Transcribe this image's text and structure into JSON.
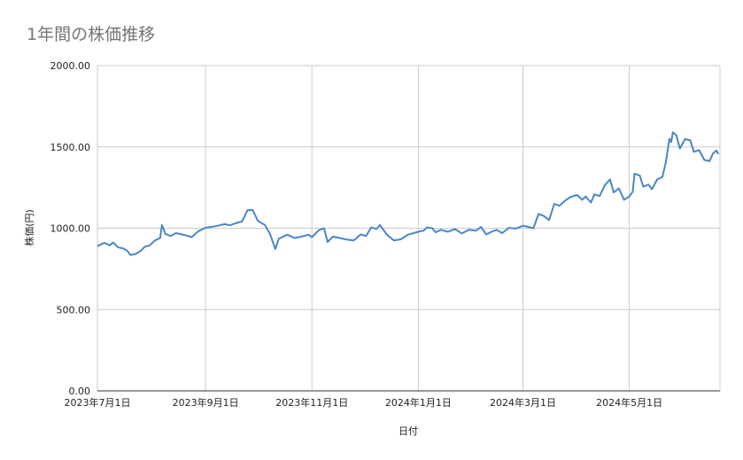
{
  "title": "1年間の株価推移",
  "chart_data": {
    "type": "line",
    "title": "1年間の株価推移",
    "xlabel": "日付",
    "ylabel": "株価(円)",
    "ylim": [
      0,
      2000
    ],
    "yticks": [
      "0.00",
      "500.00",
      "1000.00",
      "1500.00",
      "2000.00"
    ],
    "xticks": [
      {
        "date": "2023-07-01",
        "label": "2023年7月1日"
      },
      {
        "date": "2023-09-01",
        "label": "2023年9月1日"
      },
      {
        "date": "2023-11-01",
        "label": "2023年11月1日"
      },
      {
        "date": "2024-01-01",
        "label": "2024年1月1日"
      },
      {
        "date": "2024-03-01",
        "label": "2024年3月1日"
      },
      {
        "date": "2024-05-01",
        "label": "2024年5月1日"
      }
    ],
    "grid": true,
    "line_color": "#4a86c8",
    "series": [
      {
        "points": [
          [
            "2023-07-01",
            890
          ],
          [
            "2023-07-05",
            910
          ],
          [
            "2023-07-08",
            895
          ],
          [
            "2023-07-10",
            912
          ],
          [
            "2023-07-13",
            882
          ],
          [
            "2023-07-16",
            875
          ],
          [
            "2023-07-18",
            862
          ],
          [
            "2023-07-20",
            835
          ],
          [
            "2023-07-23",
            842
          ],
          [
            "2023-07-26",
            862
          ],
          [
            "2023-07-28",
            885
          ],
          [
            "2023-07-31",
            895
          ],
          [
            "2023-08-03",
            925
          ],
          [
            "2023-08-06",
            940
          ],
          [
            "2023-08-07",
            1020
          ],
          [
            "2023-08-09",
            965
          ],
          [
            "2023-08-12",
            952
          ],
          [
            "2023-08-15",
            970
          ],
          [
            "2023-08-20",
            958
          ],
          [
            "2023-08-24",
            945
          ],
          [
            "2023-08-28",
            982
          ],
          [
            "2023-09-01",
            1003
          ],
          [
            "2023-09-05",
            1010
          ],
          [
            "2023-09-08",
            1015
          ],
          [
            "2023-09-12",
            1025
          ],
          [
            "2023-09-15",
            1018
          ],
          [
            "2023-09-18",
            1030
          ],
          [
            "2023-09-22",
            1042
          ],
          [
            "2023-09-25",
            1110
          ],
          [
            "2023-09-28",
            1112
          ],
          [
            "2023-10-01",
            1045
          ],
          [
            "2023-10-05",
            1020
          ],
          [
            "2023-10-08",
            965
          ],
          [
            "2023-10-11",
            872
          ],
          [
            "2023-10-13",
            935
          ],
          [
            "2023-10-18",
            960
          ],
          [
            "2023-10-22",
            940
          ],
          [
            "2023-10-26",
            948
          ],
          [
            "2023-10-30",
            960
          ],
          [
            "2023-11-01",
            945
          ],
          [
            "2023-11-05",
            988
          ],
          [
            "2023-11-08",
            1000
          ],
          [
            "2023-11-10",
            915
          ],
          [
            "2023-11-13",
            948
          ],
          [
            "2023-11-17",
            940
          ],
          [
            "2023-11-21",
            930
          ],
          [
            "2023-11-25",
            925
          ],
          [
            "2023-11-29",
            962
          ],
          [
            "2023-12-02",
            952
          ],
          [
            "2023-12-05",
            1005
          ],
          [
            "2023-12-08",
            995
          ],
          [
            "2023-12-10",
            1020
          ],
          [
            "2023-12-14",
            960
          ],
          [
            "2023-12-18",
            925
          ],
          [
            "2023-12-22",
            932
          ],
          [
            "2023-12-26",
            960
          ],
          [
            "2024-01-01",
            978
          ],
          [
            "2024-01-04",
            985
          ],
          [
            "2024-01-06",
            1005
          ],
          [
            "2024-01-09",
            1000
          ],
          [
            "2024-01-11",
            975
          ],
          [
            "2024-01-14",
            990
          ],
          [
            "2024-01-18",
            978
          ],
          [
            "2024-01-22",
            995
          ],
          [
            "2024-01-26",
            968
          ],
          [
            "2024-01-30",
            990
          ],
          [
            "2024-02-03",
            985
          ],
          [
            "2024-02-06",
            1008
          ],
          [
            "2024-02-09",
            962
          ],
          [
            "2024-02-12",
            978
          ],
          [
            "2024-02-15",
            990
          ],
          [
            "2024-02-18",
            970
          ],
          [
            "2024-02-22",
            1002
          ],
          [
            "2024-02-26",
            998
          ],
          [
            "2024-03-01",
            1015
          ],
          [
            "2024-03-04",
            1008
          ],
          [
            "2024-03-07",
            1000
          ],
          [
            "2024-03-10",
            1088
          ],
          [
            "2024-03-13",
            1075
          ],
          [
            "2024-03-16",
            1050
          ],
          [
            "2024-03-19",
            1150
          ],
          [
            "2024-03-22",
            1138
          ],
          [
            "2024-03-25",
            1168
          ],
          [
            "2024-03-28",
            1190
          ],
          [
            "2024-04-01",
            1205
          ],
          [
            "2024-04-04",
            1175
          ],
          [
            "2024-04-06",
            1195
          ],
          [
            "2024-04-09",
            1158
          ],
          [
            "2024-04-11",
            1208
          ],
          [
            "2024-04-14",
            1198
          ],
          [
            "2024-04-17",
            1265
          ],
          [
            "2024-04-20",
            1300
          ],
          [
            "2024-04-22",
            1220
          ],
          [
            "2024-04-25",
            1245
          ],
          [
            "2024-04-28",
            1175
          ],
          [
            "2024-05-01",
            1195
          ],
          [
            "2024-05-03",
            1225
          ],
          [
            "2024-05-04",
            1335
          ],
          [
            "2024-05-07",
            1325
          ],
          [
            "2024-05-09",
            1255
          ],
          [
            "2024-05-12",
            1268
          ],
          [
            "2024-05-14",
            1240
          ],
          [
            "2024-05-17",
            1300
          ],
          [
            "2024-05-20",
            1315
          ],
          [
            "2024-05-22",
            1410
          ],
          [
            "2024-05-24",
            1550
          ],
          [
            "2024-05-25",
            1530
          ],
          [
            "2024-05-26",
            1590
          ],
          [
            "2024-05-28",
            1570
          ],
          [
            "2024-05-30",
            1490
          ],
          [
            "2024-06-02",
            1548
          ],
          [
            "2024-06-05",
            1540
          ],
          [
            "2024-06-07",
            1470
          ],
          [
            "2024-06-10",
            1480
          ],
          [
            "2024-06-13",
            1420
          ],
          [
            "2024-06-16",
            1412
          ],
          [
            "2024-06-18",
            1460
          ],
          [
            "2024-06-20",
            1478
          ],
          [
            "2024-06-21",
            1455
          ]
        ]
      }
    ]
  }
}
